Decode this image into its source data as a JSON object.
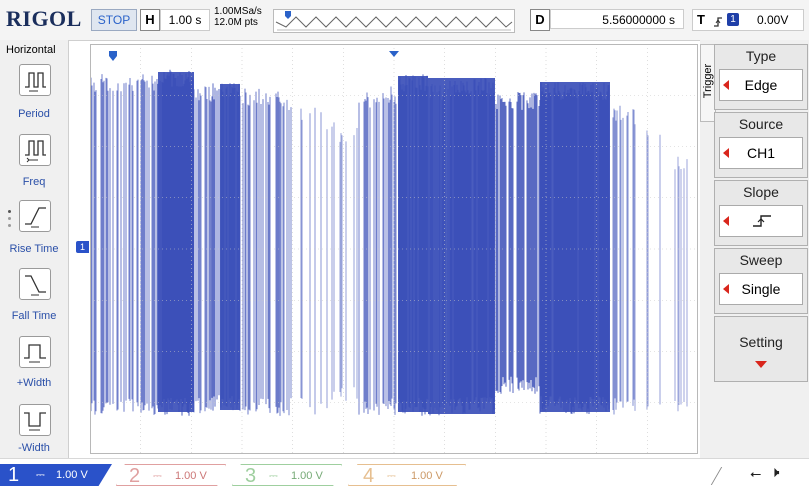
{
  "brand": "RIGOL",
  "status": {
    "run_state": "STOP"
  },
  "horizontal_info": {
    "label": "H",
    "timebase": "1.00 s",
    "sample_rate": "1.00MSa/s",
    "memory_depth": "12.0M pts"
  },
  "delay": {
    "label": "D",
    "value": "5.56000000 s"
  },
  "trigger_info": {
    "label": "T",
    "source_badge": "1",
    "level": "0.00V"
  },
  "left_menu": {
    "title": "Horizontal",
    "items": [
      {
        "label": "Period",
        "icon": "period-icon"
      },
      {
        "label": "Freq",
        "icon": "frequency-icon"
      },
      {
        "label": "Rise Time",
        "icon": "rise-time-icon"
      },
      {
        "label": "Fall Time",
        "icon": "fall-time-icon"
      },
      {
        "label": "+Width",
        "icon": "positive-width-icon"
      },
      {
        "label": "-Width",
        "icon": "negative-width-icon"
      }
    ]
  },
  "trigger_menu": {
    "tab_label": "Trigger",
    "type": {
      "header": "Type",
      "value": "Edge"
    },
    "source": {
      "header": "Source",
      "value": "CH1"
    },
    "slope": {
      "header": "Slope",
      "icon": "rising-edge-icon"
    },
    "sweep": {
      "header": "Sweep",
      "value": "Single"
    },
    "setting": {
      "header": "Setting"
    }
  },
  "screen_markers": {
    "ch1_marker": "1",
    "trigger_marker": "T"
  },
  "channels": [
    {
      "number": "1",
      "scale": "1.00 V",
      "active": true,
      "color": "#2a52c9"
    },
    {
      "number": "2",
      "scale": "1.00 V",
      "active": false,
      "color": "#e0a0a0"
    },
    {
      "number": "3",
      "scale": "1.00 V",
      "active": false,
      "color": "#9fcf9f"
    },
    {
      "number": "4",
      "scale": "1.00 V",
      "active": false,
      "color": "#e6bf90"
    }
  ],
  "colors": {
    "trace": "#3b4fb8",
    "accent": "#2a62c9",
    "arrow": "#d9261c",
    "brand": "#1a2e5c"
  }
}
